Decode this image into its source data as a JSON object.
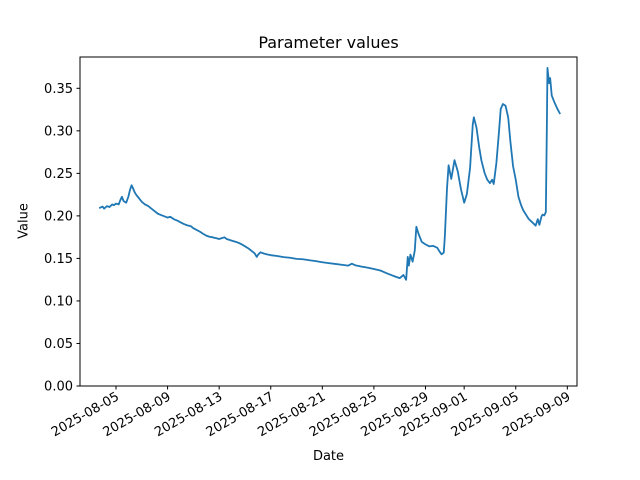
{
  "chart_data": {
    "type": "line",
    "title": "Parameter values",
    "xlabel": "Date",
    "ylabel": "Value",
    "line_color": "#1f77b4",
    "background_color": "#ffffff",
    "spine_color": "#000000",
    "grid": false,
    "legend_position": "none",
    "xlim": [
      "2025-08-02T05:00",
      "2025-09-09T18:00"
    ],
    "ylim": [
      0,
      0.3868
    ],
    "x_ticks": [
      "2025-08-05",
      "2025-08-09",
      "2025-08-13",
      "2025-08-17",
      "2025-08-21",
      "2025-08-25",
      "2025-08-29",
      "2025-09-01",
      "2025-09-05",
      "2025-09-09"
    ],
    "y_ticks": [
      {
        "label": "0.00",
        "value": 0.0
      },
      {
        "label": "0.05",
        "value": 0.05
      },
      {
        "label": "0.10",
        "value": 0.1
      },
      {
        "label": "0.15",
        "value": 0.15
      },
      {
        "label": "0.20",
        "value": 0.2
      },
      {
        "label": "0.25",
        "value": 0.25
      },
      {
        "label": "0.30",
        "value": 0.3
      },
      {
        "label": "0.35",
        "value": 0.35
      }
    ],
    "series": [
      {
        "name": "parameter-values",
        "points": [
          [
            "2025-08-03T18:00",
            0.2095
          ],
          [
            "2025-08-03T23:00",
            0.211
          ],
          [
            "2025-08-04T02:00",
            0.2085
          ],
          [
            "2025-08-04T07:00",
            0.2115
          ],
          [
            "2025-08-04T12:00",
            0.2105
          ],
          [
            "2025-08-04T17:00",
            0.2135
          ],
          [
            "2025-08-04T20:00",
            0.2125
          ],
          [
            "2025-08-05T00:00",
            0.2145
          ],
          [
            "2025-08-05T05:00",
            0.2135
          ],
          [
            "2025-08-05T08:00",
            0.2185
          ],
          [
            "2025-08-05T11:00",
            0.2225
          ],
          [
            "2025-08-05T14:00",
            0.2175
          ],
          [
            "2025-08-05T19:00",
            0.2155
          ],
          [
            "2025-08-05T23:00",
            0.2225
          ],
          [
            "2025-08-06T02:00",
            0.2305
          ],
          [
            "2025-08-06T05:00",
            0.236
          ],
          [
            "2025-08-06T07:00",
            0.2335
          ],
          [
            "2025-08-06T11:00",
            0.2275
          ],
          [
            "2025-08-06T14:00",
            0.2245
          ],
          [
            "2025-08-06T19:00",
            0.2205
          ],
          [
            "2025-08-07T00:00",
            0.2165
          ],
          [
            "2025-08-07T06:00",
            0.2135
          ],
          [
            "2025-08-07T12:00",
            0.2115
          ],
          [
            "2025-08-07T18:00",
            0.2085
          ],
          [
            "2025-08-08T00:00",
            0.2055
          ],
          [
            "2025-08-08T06:00",
            0.2025
          ],
          [
            "2025-08-08T12:00",
            0.201
          ],
          [
            "2025-08-08T18:00",
            0.1995
          ],
          [
            "2025-08-09T00:00",
            0.198
          ],
          [
            "2025-08-09T05:00",
            0.199
          ],
          [
            "2025-08-09T12:00",
            0.196
          ],
          [
            "2025-08-09T18:00",
            0.1945
          ],
          [
            "2025-08-10T00:00",
            0.1925
          ],
          [
            "2025-08-10T06:00",
            0.1905
          ],
          [
            "2025-08-10T12:00",
            0.189
          ],
          [
            "2025-08-10T19:00",
            0.188
          ],
          [
            "2025-08-11T00:00",
            0.1855
          ],
          [
            "2025-08-11T06:00",
            0.1835
          ],
          [
            "2025-08-11T12:00",
            0.1815
          ],
          [
            "2025-08-11T18:00",
            0.179
          ],
          [
            "2025-08-12T00:00",
            0.1768
          ],
          [
            "2025-08-12T06:00",
            0.1755
          ],
          [
            "2025-08-12T12:00",
            0.1748
          ],
          [
            "2025-08-12T18:00",
            0.1738
          ],
          [
            "2025-08-13T00:00",
            0.1728
          ],
          [
            "2025-08-13T05:00",
            0.1738
          ],
          [
            "2025-08-13T10:00",
            0.1748
          ],
          [
            "2025-08-13T14:00",
            0.1728
          ],
          [
            "2025-08-13T19:00",
            0.1718
          ],
          [
            "2025-08-14T00:00",
            0.1708
          ],
          [
            "2025-08-14T07:00",
            0.1695
          ],
          [
            "2025-08-14T14:00",
            0.1678
          ],
          [
            "2025-08-14T20:00",
            0.1658
          ],
          [
            "2025-08-15T02:00",
            0.1635
          ],
          [
            "2025-08-15T07:00",
            0.1615
          ],
          [
            "2025-08-15T13:00",
            0.1585
          ],
          [
            "2025-08-15T18:00",
            0.156
          ],
          [
            "2025-08-15T22:00",
            0.1518
          ],
          [
            "2025-08-16T01:00",
            0.1548
          ],
          [
            "2025-08-16T05:00",
            0.1572
          ],
          [
            "2025-08-16T11:00",
            0.1558
          ],
          [
            "2025-08-16T17:00",
            0.1548
          ],
          [
            "2025-08-17T00:00",
            0.1538
          ],
          [
            "2025-08-17T12:00",
            0.1528
          ],
          [
            "2025-08-18T00:00",
            0.1515
          ],
          [
            "2025-08-18T12:00",
            0.1508
          ],
          [
            "2025-08-19T00:00",
            0.1495
          ],
          [
            "2025-08-19T12:00",
            0.149
          ],
          [
            "2025-08-20T00:00",
            0.1478
          ],
          [
            "2025-08-20T12:00",
            0.1468
          ],
          [
            "2025-08-21T00:00",
            0.1455
          ],
          [
            "2025-08-21T12:00",
            0.1445
          ],
          [
            "2025-08-22T00:00",
            0.1435
          ],
          [
            "2025-08-22T12:00",
            0.1425
          ],
          [
            "2025-08-23T00:00",
            0.1415
          ],
          [
            "2025-08-23T07:00",
            0.1438
          ],
          [
            "2025-08-23T14:00",
            0.1418
          ],
          [
            "2025-08-24T00:00",
            0.1405
          ],
          [
            "2025-08-24T12:00",
            0.1392
          ],
          [
            "2025-08-25T00:00",
            0.1375
          ],
          [
            "2025-08-25T12:00",
            0.1358
          ],
          [
            "2025-08-26T00:00",
            0.1325
          ],
          [
            "2025-08-26T12:00",
            0.1295
          ],
          [
            "2025-08-27T00:00",
            0.1268
          ],
          [
            "2025-08-27T07:00",
            0.1305
          ],
          [
            "2025-08-27T12:00",
            0.1248
          ],
          [
            "2025-08-27T15:00",
            0.1518
          ],
          [
            "2025-08-27T17:00",
            0.1415
          ],
          [
            "2025-08-27T20:00",
            0.1545
          ],
          [
            "2025-08-28T00:00",
            0.1462
          ],
          [
            "2025-08-28T04:00",
            0.159
          ],
          [
            "2025-08-28T07:00",
            0.1872
          ],
          [
            "2025-08-28T11:00",
            0.179
          ],
          [
            "2025-08-28T17:00",
            0.1695
          ],
          [
            "2025-08-29T00:00",
            0.1665
          ],
          [
            "2025-08-29T07:00",
            0.1642
          ],
          [
            "2025-08-29T14:00",
            0.1648
          ],
          [
            "2025-08-29T22:00",
            0.1625
          ],
          [
            "2025-08-30T02:00",
            0.1582
          ],
          [
            "2025-08-30T06:00",
            0.1548
          ],
          [
            "2025-08-30T10:00",
            0.1568
          ],
          [
            "2025-08-30T12:00",
            0.1752
          ],
          [
            "2025-08-30T16:00",
            0.2315
          ],
          [
            "2025-08-30T19:00",
            0.2595
          ],
          [
            "2025-08-31T00:00",
            0.2435
          ],
          [
            "2025-08-31T06:00",
            0.2655
          ],
          [
            "2025-08-31T12:00",
            0.2525
          ],
          [
            "2025-08-31T18:00",
            0.2315
          ],
          [
            "2025-09-01T00:00",
            0.2155
          ],
          [
            "2025-09-01T05:00",
            0.2255
          ],
          [
            "2025-09-01T11:00",
            0.2565
          ],
          [
            "2025-09-01T16:00",
            0.3075
          ],
          [
            "2025-09-01T18:00",
            0.316
          ],
          [
            "2025-09-01T23:00",
            0.3035
          ],
          [
            "2025-09-02T04:00",
            0.2805
          ],
          [
            "2025-09-02T08:00",
            0.2655
          ],
          [
            "2025-09-02T14:00",
            0.2505
          ],
          [
            "2025-09-02T19:00",
            0.2425
          ],
          [
            "2025-09-03T00:00",
            0.2385
          ],
          [
            "2025-09-03T04:00",
            0.2425
          ],
          [
            "2025-09-03T07:00",
            0.2375
          ],
          [
            "2025-09-03T12:00",
            0.2625
          ],
          [
            "2025-09-03T17:00",
            0.3005
          ],
          [
            "2025-09-03T20:00",
            0.3255
          ],
          [
            "2025-09-04T00:00",
            0.3315
          ],
          [
            "2025-09-04T05:00",
            0.3295
          ],
          [
            "2025-09-04T10:00",
            0.3155
          ],
          [
            "2025-09-04T14:00",
            0.2875
          ],
          [
            "2025-09-04T19:00",
            0.2585
          ],
          [
            "2025-09-05T00:00",
            0.2425
          ],
          [
            "2025-09-05T05:00",
            0.2225
          ],
          [
            "2025-09-05T10:00",
            0.2125
          ],
          [
            "2025-09-05T14:00",
            0.2065
          ],
          [
            "2025-09-05T19:00",
            0.2015
          ],
          [
            "2025-09-06T00:00",
            0.1965
          ],
          [
            "2025-09-06T05:00",
            0.1935
          ],
          [
            "2025-09-06T10:00",
            0.1905
          ],
          [
            "2025-09-06T13:00",
            0.1885
          ],
          [
            "2025-09-06T17:00",
            0.1962
          ],
          [
            "2025-09-06T20:00",
            0.1895
          ],
          [
            "2025-09-07T00:00",
            0.1995
          ],
          [
            "2025-09-07T02:00",
            0.2015
          ],
          [
            "2025-09-07T05:00",
            0.2005
          ],
          [
            "2025-09-07T08:00",
            0.2045
          ],
          [
            "2025-09-07T10:00",
            0.31
          ],
          [
            "2025-09-07T11:00",
            0.374
          ],
          [
            "2025-09-07T14:00",
            0.356
          ],
          [
            "2025-09-07T16:00",
            0.362
          ],
          [
            "2025-09-07T19:00",
            0.3415
          ],
          [
            "2025-09-08T00:00",
            0.3335
          ],
          [
            "2025-09-08T05:00",
            0.3265
          ],
          [
            "2025-09-08T10:00",
            0.3205
          ]
        ]
      }
    ]
  }
}
